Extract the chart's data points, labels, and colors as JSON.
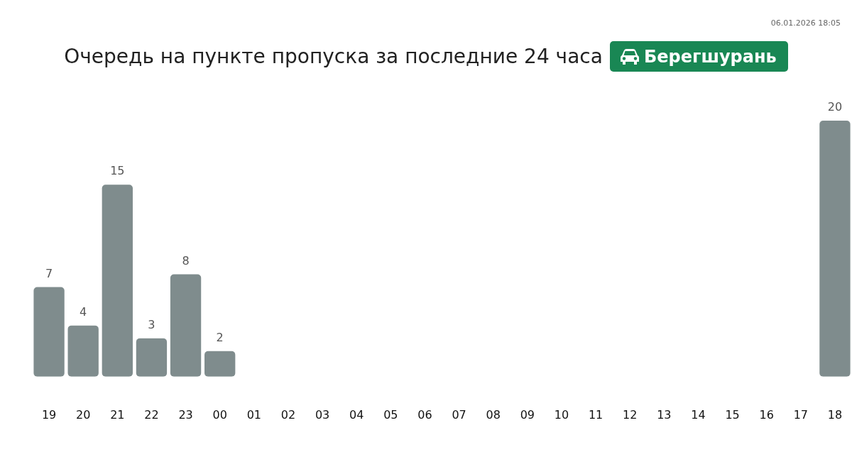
{
  "chart_data": {
    "type": "bar",
    "title": "Очередь на пункте пропуска за последние 24 часа",
    "subtitle": "Берегшурань",
    "categories": [
      "19",
      "20",
      "21",
      "22",
      "23",
      "00",
      "01",
      "02",
      "03",
      "04",
      "05",
      "06",
      "07",
      "08",
      "09",
      "10",
      "11",
      "12",
      "13",
      "14",
      "15",
      "16",
      "17",
      "18"
    ],
    "values": [
      7,
      4,
      15,
      3,
      8,
      2,
      null,
      null,
      null,
      null,
      null,
      null,
      null,
      null,
      null,
      null,
      null,
      null,
      null,
      null,
      null,
      null,
      null,
      20
    ],
    "color": "#7f8c8d",
    "data_labels": true,
    "tick_labels": "x",
    "annotations": [
      "06.01.2026 18:05"
    ]
  }
}
